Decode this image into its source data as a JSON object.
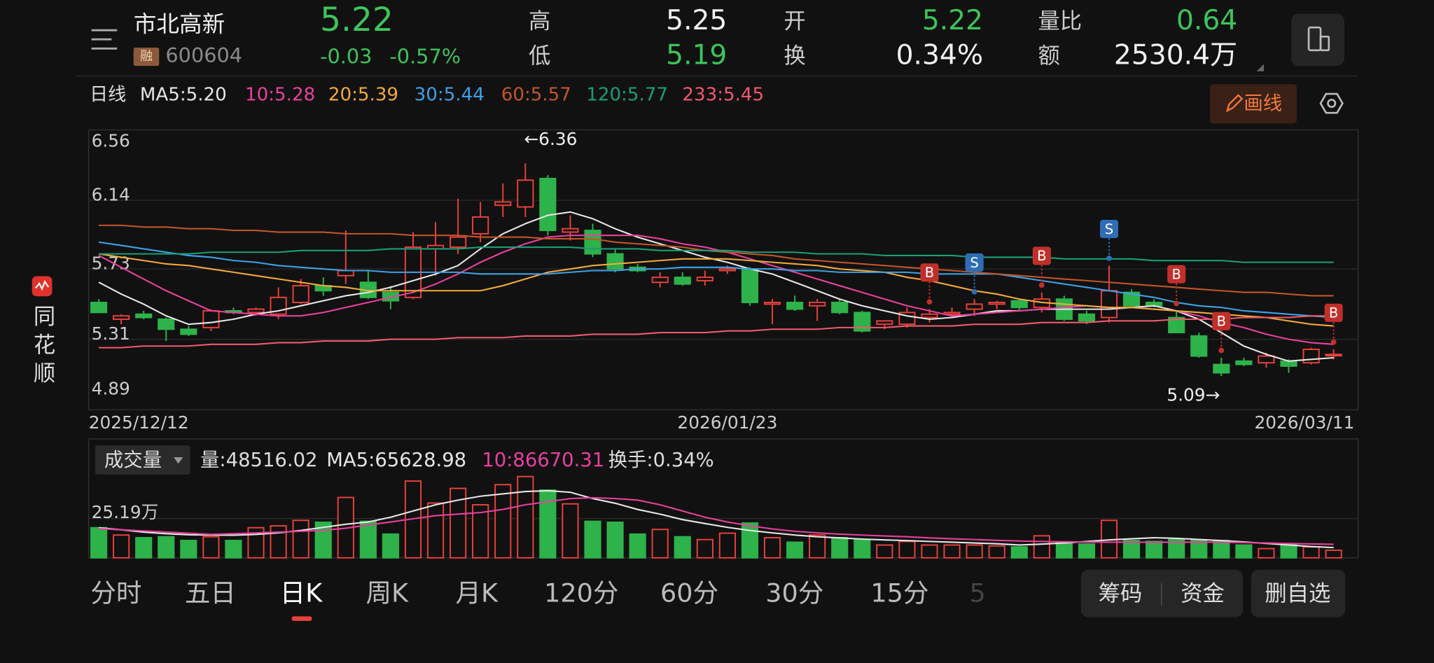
{
  "header": {
    "name": "市北高新",
    "badge": "融",
    "code": "600604",
    "price": "5.22",
    "change": "-0.03",
    "change_pct": "-0.57%",
    "stats": [
      {
        "label": "高",
        "value": "5.25",
        "color": "#f2f2f2"
      },
      {
        "label": "低",
        "value": "5.19",
        "color": "#3dc45b"
      },
      {
        "label": "开",
        "value": "5.22",
        "color": "#3dc45b"
      },
      {
        "label": "换",
        "value": "0.34%",
        "color": "#f2f2f2"
      },
      {
        "label": "量比",
        "value": "0.64",
        "color": "#3dc45b"
      },
      {
        "label": "额",
        "value": "2530.4万",
        "color": "#f2f2f2"
      }
    ]
  },
  "toolbar": {
    "period": "日线",
    "draw_button": "画线"
  },
  "chart_data": [
    {
      "type": "candlestick",
      "up_color": "#e8413c",
      "down_color": "#2eb24a",
      "categories": [
        "2025/12/12",
        null,
        null,
        null,
        null,
        null,
        null,
        null,
        null,
        null,
        null,
        null,
        null,
        null,
        null,
        null,
        null,
        null,
        null,
        null,
        null,
        null,
        null,
        null,
        null,
        null,
        null,
        null,
        "2026/01/23",
        null,
        null,
        null,
        null,
        null,
        null,
        null,
        null,
        null,
        null,
        null,
        null,
        null,
        null,
        null,
        null,
        null,
        null,
        null,
        null,
        null,
        null,
        null,
        null,
        null,
        null,
        "2026/03/11"
      ],
      "open": [
        5.53,
        5.43,
        5.46,
        5.43,
        5.37,
        5.38,
        5.48,
        5.47,
        5.46,
        5.53,
        5.63,
        5.69,
        5.65,
        5.59,
        5.56,
        5.85,
        5.86,
        5.94,
        6.11,
        6.1,
        6.27,
        5.95,
        5.96,
        5.82,
        5.74,
        5.65,
        5.68,
        5.66,
        5.72,
        5.73,
        5.52,
        5.53,
        5.51,
        5.53,
        5.47,
        5.4,
        5.4,
        5.44,
        5.46,
        5.49,
        5.52,
        5.54,
        5.5,
        5.55,
        5.46,
        5.44,
        5.59,
        5.53,
        5.44,
        5.33,
        5.16,
        5.18,
        5.17,
        5.18,
        5.17,
        5.22
      ],
      "high": [
        5.55,
        5.46,
        5.48,
        5.44,
        5.39,
        5.49,
        5.5,
        5.5,
        5.62,
        5.67,
        5.68,
        5.96,
        5.72,
        5.63,
        5.95,
        6.01,
        6.15,
        6.13,
        6.24,
        6.36,
        6.29,
        6.05,
        6.0,
        5.85,
        5.76,
        5.71,
        5.71,
        5.72,
        5.75,
        5.74,
        5.55,
        5.57,
        5.55,
        5.55,
        5.48,
        5.42,
        5.5,
        5.49,
        5.5,
        5.55,
        5.54,
        5.55,
        5.59,
        5.57,
        5.48,
        5.75,
        5.61,
        5.55,
        5.48,
        5.35,
        5.2,
        5.2,
        5.23,
        5.19,
        5.26,
        5.25
      ],
      "low": [
        5.47,
        5.4,
        5.43,
        5.3,
        5.33,
        5.36,
        5.46,
        5.45,
        5.43,
        5.52,
        5.57,
        5.64,
        5.55,
        5.49,
        5.55,
        5.69,
        5.82,
        5.89,
        6.04,
        6.04,
        5.93,
        5.9,
        5.8,
        5.71,
        5.71,
        5.62,
        5.63,
        5.63,
        5.7,
        5.51,
        5.4,
        5.48,
        5.42,
        5.46,
        5.35,
        5.37,
        5.38,
        5.41,
        5.44,
        5.45,
        5.49,
        5.48,
        5.47,
        5.42,
        5.4,
        5.41,
        5.5,
        5.5,
        5.35,
        5.2,
        5.09,
        5.15,
        5.14,
        5.11,
        5.16,
        5.19
      ],
      "close": [
        5.47,
        5.45,
        5.44,
        5.37,
        5.34,
        5.48,
        5.47,
        5.49,
        5.56,
        5.63,
        5.6,
        5.72,
        5.56,
        5.54,
        5.86,
        5.87,
        5.92,
        6.04,
        6.13,
        6.26,
        5.96,
        5.97,
        5.82,
        5.73,
        5.72,
        5.68,
        5.64,
        5.68,
        5.73,
        5.53,
        5.53,
        5.49,
        5.53,
        5.47,
        5.36,
        5.42,
        5.47,
        5.46,
        5.47,
        5.52,
        5.53,
        5.5,
        5.55,
        5.43,
        5.42,
        5.6,
        5.51,
        5.51,
        5.35,
        5.21,
        5.11,
        5.16,
        5.21,
        5.15,
        5.25,
        5.22
      ],
      "ylim": [
        4.89,
        6.56
      ],
      "yticks": [
        6.56,
        6.14,
        5.73,
        5.31,
        4.89
      ],
      "grid": true,
      "series": [
        {
          "name": "MA5:5.20",
          "color": "#e6e6e6",
          "values": [
            5.65,
            5.58,
            5.52,
            5.45,
            5.4,
            5.41,
            5.43,
            5.46,
            5.48,
            5.51,
            5.54,
            5.57,
            5.59,
            5.62,
            5.66,
            5.7,
            5.75,
            5.85,
            5.94,
            6.0,
            6.05,
            6.07,
            6.03,
            5.97,
            5.92,
            5.88,
            5.84,
            5.8,
            5.77,
            5.73,
            5.7,
            5.65,
            5.6,
            5.55,
            5.51,
            5.48,
            5.45,
            5.43,
            5.44,
            5.46,
            5.48,
            5.48,
            5.49,
            5.49,
            5.49,
            5.49,
            5.5,
            5.51,
            5.48,
            5.43,
            5.35,
            5.27,
            5.22,
            5.18,
            5.19,
            5.2
          ]
        },
        {
          "name": "10:5.28",
          "color": "#e8409e",
          "values": [
            5.81,
            5.74,
            5.67,
            5.6,
            5.54,
            5.48,
            5.47,
            5.46,
            5.45,
            5.45,
            5.47,
            5.5,
            5.53,
            5.56,
            5.59,
            5.64,
            5.7,
            5.77,
            5.83,
            5.88,
            5.92,
            5.93,
            5.93,
            5.93,
            5.93,
            5.91,
            5.88,
            5.86,
            5.83,
            5.79,
            5.75,
            5.71,
            5.67,
            5.63,
            5.59,
            5.55,
            5.51,
            5.48,
            5.45,
            5.46,
            5.47,
            5.48,
            5.49,
            5.5,
            5.51,
            5.5,
            5.5,
            5.49,
            5.48,
            5.45,
            5.41,
            5.38,
            5.34,
            5.31,
            5.29,
            5.28
          ]
        },
        {
          "name": "20:5.39",
          "color": "#f2a93b",
          "values": [
            5.82,
            5.8,
            5.78,
            5.76,
            5.75,
            5.73,
            5.71,
            5.69,
            5.67,
            5.65,
            5.63,
            5.62,
            5.6,
            5.6,
            5.6,
            5.6,
            5.6,
            5.6,
            5.63,
            5.67,
            5.71,
            5.73,
            5.75,
            5.76,
            5.77,
            5.78,
            5.79,
            5.79,
            5.79,
            5.78,
            5.77,
            5.76,
            5.75,
            5.73,
            5.72,
            5.71,
            5.68,
            5.66,
            5.63,
            5.6,
            5.58,
            5.55,
            5.53,
            5.52,
            5.51,
            5.5,
            5.5,
            5.49,
            5.48,
            5.47,
            5.46,
            5.45,
            5.44,
            5.42,
            5.4,
            5.39
          ]
        },
        {
          "name": "30:5.44",
          "color": "#3ea0e6",
          "values": [
            5.89,
            5.87,
            5.85,
            5.83,
            5.81,
            5.8,
            5.78,
            5.77,
            5.75,
            5.74,
            5.73,
            5.72,
            5.72,
            5.71,
            5.71,
            5.71,
            5.71,
            5.7,
            5.7,
            5.7,
            5.7,
            5.71,
            5.72,
            5.72,
            5.73,
            5.73,
            5.74,
            5.74,
            5.74,
            5.73,
            5.73,
            5.72,
            5.72,
            5.71,
            5.71,
            5.71,
            5.71,
            5.7,
            5.7,
            5.7,
            5.7,
            5.68,
            5.66,
            5.64,
            5.62,
            5.6,
            5.58,
            5.56,
            5.53,
            5.51,
            5.5,
            5.48,
            5.47,
            5.46,
            5.45,
            5.44
          ]
        },
        {
          "name": "60:5.57",
          "color": "#c0562a",
          "values": [
            5.99,
            5.99,
            5.98,
            5.98,
            5.97,
            5.97,
            5.96,
            5.96,
            5.95,
            5.95,
            5.95,
            5.94,
            5.94,
            5.94,
            5.93,
            5.93,
            5.93,
            5.92,
            5.92,
            5.92,
            5.91,
            5.91,
            5.91,
            5.89,
            5.88,
            5.87,
            5.86,
            5.84,
            5.83,
            5.82,
            5.81,
            5.79,
            5.78,
            5.77,
            5.76,
            5.75,
            5.74,
            5.73,
            5.72,
            5.71,
            5.7,
            5.69,
            5.68,
            5.67,
            5.66,
            5.65,
            5.64,
            5.63,
            5.62,
            5.61,
            5.6,
            5.59,
            5.59,
            5.58,
            5.57,
            5.57
          ]
        },
        {
          "name": "120:5.77",
          "color": "#1a9e77",
          "values": [
            5.82,
            5.82,
            5.82,
            5.82,
            5.82,
            5.83,
            5.83,
            5.83,
            5.83,
            5.84,
            5.84,
            5.84,
            5.84,
            5.85,
            5.85,
            5.85,
            5.85,
            5.86,
            5.86,
            5.86,
            5.86,
            5.86,
            5.85,
            5.85,
            5.85,
            5.84,
            5.84,
            5.84,
            5.84,
            5.83,
            5.83,
            5.83,
            5.82,
            5.82,
            5.82,
            5.81,
            5.81,
            5.81,
            5.81,
            5.8,
            5.8,
            5.8,
            5.8,
            5.79,
            5.79,
            5.79,
            5.79,
            5.78,
            5.78,
            5.78,
            5.78,
            5.77,
            5.77,
            5.77,
            5.77,
            5.77
          ]
        },
        {
          "name": "233:5.45",
          "color": "#ee5a6e",
          "values": [
            5.26,
            5.26,
            5.27,
            5.27,
            5.27,
            5.28,
            5.28,
            5.28,
            5.29,
            5.29,
            5.3,
            5.3,
            5.3,
            5.31,
            5.31,
            5.31,
            5.32,
            5.32,
            5.32,
            5.33,
            5.33,
            5.33,
            5.34,
            5.34,
            5.34,
            5.35,
            5.35,
            5.35,
            5.36,
            5.36,
            5.37,
            5.37,
            5.37,
            5.38,
            5.38,
            5.38,
            5.39,
            5.39,
            5.39,
            5.4,
            5.4,
            5.4,
            5.41,
            5.41,
            5.41,
            5.42,
            5.42,
            5.42,
            5.43,
            5.43,
            5.43,
            5.44,
            5.44,
            5.44,
            5.45,
            5.45
          ]
        }
      ],
      "annotations": {
        "high": "←6.36",
        "low": "5.09→"
      },
      "signals": [
        null,
        null,
        null,
        null,
        null,
        null,
        null,
        null,
        null,
        null,
        null,
        null,
        null,
        null,
        null,
        null,
        null,
        null,
        null,
        null,
        null,
        null,
        null,
        null,
        null,
        null,
        null,
        null,
        null,
        null,
        null,
        null,
        null,
        null,
        null,
        null,
        null,
        "B",
        null,
        "S",
        null,
        null,
        "B",
        null,
        null,
        "S",
        null,
        null,
        "B",
        null,
        "B",
        null,
        null,
        null,
        null,
        "B"
      ],
      "signal_colors": {
        "B": "#c0302b",
        "S": "#2f6db5"
      }
    },
    {
      "type": "bar",
      "title": "成交量",
      "info": "量:48516.02",
      "turnover": "换手:0.34%",
      "values": [
        19.3,
        14.6,
        12.9,
        13.5,
        11.1,
        13.5,
        11.1,
        19.3,
        20.5,
        24.0,
        22.8,
        38.7,
        23.4,
        15.2,
        49.2,
        35.1,
        44.5,
        34.0,
        46.9,
        52.1,
        43.4,
        34.6,
        23.4,
        22.8,
        15.2,
        18.2,
        13.5,
        11.7,
        15.8,
        22.3,
        12.9,
        10.0,
        14.6,
        12.9,
        11.7,
        8.2,
        10.5,
        8.2,
        8.2,
        8.2,
        7.6,
        7.0,
        14.1,
        10.0,
        8.8,
        24.0,
        11.1,
        10.5,
        11.7,
        11.1,
        11.1,
        8.2,
        5.9,
        8.8,
        7.0,
        4.85
      ],
      "ylim": [
        0,
        76.2
      ],
      "yticks": [
        {
          "value": 25.19,
          "label": "25.19万"
        }
      ],
      "series": [
        {
          "name": "MA5:65628.98",
          "color": "#e6e6e6",
          "values": [
            19.3,
            18,
            16.5,
            15.5,
            14.8,
            14.6,
            14.5,
            15,
            16,
            17.5,
            19.5,
            21.5,
            23,
            26,
            30,
            34,
            37,
            39.5,
            41,
            42.5,
            43,
            42,
            38,
            35,
            31,
            28,
            24.5,
            22,
            19.5,
            17.5,
            16,
            14.6,
            13.5,
            12.8,
            12,
            11.5,
            11,
            10.5,
            10,
            9.5,
            9,
            8.2,
            8.8,
            9.5,
            10.5,
            11.5,
            12.2,
            12.9,
            12.5,
            11.8,
            11,
            10.2,
            9.2,
            8.2,
            7.2,
            6.56
          ]
        },
        {
          "name": "10:86670.31",
          "color": "#e8409e",
          "values": [
            18.7,
            18,
            17.3,
            16.5,
            15.8,
            15,
            15.5,
            16,
            16.5,
            17,
            17.6,
            19,
            21,
            23,
            25,
            27,
            28,
            29,
            31,
            34,
            36,
            38,
            38.5,
            38,
            37,
            34,
            30,
            26,
            23,
            20.5,
            18.5,
            17,
            16,
            15.2,
            14.6,
            14,
            13.5,
            12.8,
            12.2,
            11.7,
            11.2,
            10.8,
            10.5,
            10.3,
            10.1,
            10,
            10,
            10,
            10,
            10,
            10,
            9.8,
            9.5,
            9.2,
            8.9,
            8.67
          ]
        }
      ]
    }
  ],
  "tabs": [
    {
      "label": "分时"
    },
    {
      "label": "五日"
    },
    {
      "label": "日K",
      "selected": true
    },
    {
      "label": "周K"
    },
    {
      "label": "月K"
    },
    {
      "label": "120分"
    },
    {
      "label": "60分"
    },
    {
      "label": "30分"
    },
    {
      "label": "15分"
    },
    {
      "label": "5"
    }
  ],
  "buttons": [
    "筹码",
    "资金",
    "删自选"
  ],
  "brand": "同花顺"
}
